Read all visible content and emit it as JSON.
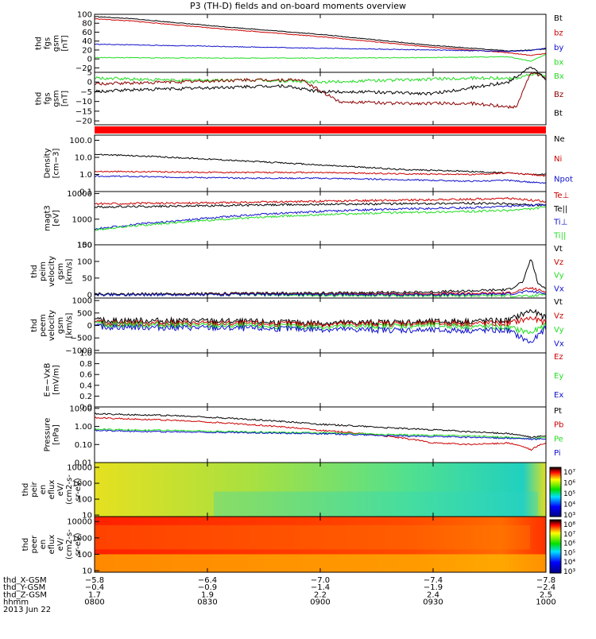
{
  "title": "P3 (TH-D) fields and on-board moments overview",
  "colors": {
    "black": "#000000",
    "red": "#cc0000",
    "darkred": "#8b0000",
    "green": "#22dd22",
    "blue": "#1010cc"
  },
  "chart_data": {
    "type": "line",
    "time": {
      "range": [
        0,
        120
      ],
      "unit": "min after 0800",
      "ticks": [
        0,
        30,
        60,
        90,
        120
      ],
      "tick_labels": [
        "0800",
        "0830",
        "0900",
        "0930",
        "1000"
      ]
    },
    "panels": [
      {
        "id": "bgsm",
        "ylabel": [
          "thd",
          "fgs",
          "gsm",
          "[nT]"
        ],
        "scale": "linear",
        "ylim": [
          -30,
          100
        ],
        "yticks": [
          100,
          80,
          60,
          40,
          20,
          0,
          -20
        ],
        "ytick_labels": [
          "100",
          "80",
          "60",
          "40",
          "20",
          "0",
          "−20"
        ],
        "series": [
          {
            "name": "Bt",
            "color": "black",
            "t": [
              0,
              10,
              30,
              60,
              90,
              110,
              116,
              120
            ],
            "v": [
              95,
              90,
              75,
              55,
              30,
              18,
              20,
              22
            ]
          },
          {
            "name": "bz",
            "color": "red",
            "t": [
              0,
              10,
              30,
              60,
              90,
              110,
              116,
              120
            ],
            "v": [
              90,
              85,
              70,
              50,
              26,
              14,
              8,
              12
            ]
          },
          {
            "name": "by",
            "color": "blue",
            "t": [
              0,
              20,
              60,
              90,
              110,
              116,
              120
            ],
            "v": [
              33,
              30,
              24,
              20,
              17,
              19,
              24
            ]
          },
          {
            "name": "bx",
            "color": "green",
            "t": [
              0,
              30,
              60,
              90,
              110,
              116,
              120
            ],
            "v": [
              3,
              2,
              2,
              3,
              5,
              -5,
              10
            ]
          }
        ]
      },
      {
        "id": "bgsmz",
        "ylabel": [
          "thd",
          "fgs",
          "gsm",
          "[nT]"
        ],
        "scale": "linear",
        "ylim": [
          -22,
          5
        ],
        "yticks": [
          5,
          0,
          -5,
          -10,
          -15,
          -20
        ],
        "ytick_labels": [
          "5",
          "0",
          "−5",
          "−10",
          "−15",
          "−20"
        ],
        "series": [
          {
            "name": "Bx",
            "color": "green",
            "t": [
              0,
              20,
              40,
              60,
              80,
              100,
              112,
              116,
              120
            ],
            "v": [
              2,
              1,
              1,
              0,
              1,
              2,
              2,
              4,
              3
            ]
          },
          {
            "name": "Bz",
            "color": "darkred",
            "t": [
              0,
              20,
              40,
              55,
              65,
              80,
              100,
              112,
              116,
              120
            ],
            "v": [
              -1,
              0,
              1,
              1,
              -10,
              -11,
              -11,
              -13,
              5,
              2
            ]
          },
          {
            "name": "Bt",
            "color": "black",
            "t": [
              0,
              10,
              30,
              50,
              60,
              70,
              90,
              100,
              110,
              116,
              120
            ],
            "v": [
              -5,
              -4,
              -3,
              -2,
              -5,
              -5,
              -6,
              -3,
              0,
              8,
              1
            ]
          }
        ]
      },
      {
        "id": "flag",
        "ylabel": [],
        "scale": "flag",
        "ylim": [
          0,
          1
        ],
        "yticks": [],
        "ytick_labels": [],
        "series": []
      },
      {
        "id": "density",
        "ylabel": [
          "Density",
          "[cm−3]"
        ],
        "scale": "log",
        "ylim": [
          0.1,
          200
        ],
        "yticks": [
          100,
          10,
          1,
          0.1
        ],
        "ytick_labels": [
          "100.0",
          "10.0",
          "1.0",
          "0.1"
        ],
        "series": [
          {
            "name": "Ne",
            "color": "black",
            "t": [
              0,
              20,
              40,
              60,
              80,
              100,
              110,
              116,
              120
            ],
            "v": [
              15,
              10,
              6,
              3.5,
              2,
              1.5,
              1.2,
              1,
              1
            ]
          },
          {
            "name": "Ni",
            "color": "red",
            "t": [
              0,
              20,
              40,
              60,
              80,
              100,
              110,
              116,
              120
            ],
            "v": [
              1.5,
              1.4,
              1.3,
              1.3,
              1.1,
              1,
              1.2,
              1,
              0.8
            ]
          },
          {
            "name": "Npot",
            "color": "blue",
            "t": [
              0,
              20,
              40,
              60,
              80,
              100,
              110,
              116,
              120
            ],
            "v": [
              0.8,
              0.7,
              0.6,
              0.6,
              0.5,
              0.4,
              0.45,
              0.35,
              0.3
            ]
          }
        ]
      },
      {
        "id": "temp",
        "ylabel": [
          "magt3",
          "[eV]"
        ],
        "scale": "log",
        "ylim": [
          100,
          12000
        ],
        "yticks": [
          10000,
          1000,
          100
        ],
        "ytick_labels": [
          "10000",
          "1000",
          "100"
        ],
        "series": [
          {
            "name": "Te⊥",
            "color": "red",
            "t": [
              0,
              20,
              40,
              60,
              80,
              100,
              110,
              116,
              120
            ],
            "v": [
              4000,
              4200,
              4500,
              5000,
              5500,
              6000,
              6500,
              5500,
              5000
            ]
          },
          {
            "name": "Te||",
            "color": "black",
            "t": [
              0,
              20,
              40,
              60,
              80,
              100,
              110,
              116,
              120
            ],
            "v": [
              3000,
              3200,
              3500,
              3800,
              4000,
              4200,
              4000,
              3500,
              3500
            ]
          },
          {
            "name": "Ti⊥",
            "color": "blue",
            "t": [
              0,
              20,
              40,
              60,
              80,
              100,
              110,
              116,
              120
            ],
            "v": [
              400,
              800,
              1400,
              2000,
              2500,
              2800,
              3200,
              3500,
              3800
            ]
          },
          {
            "name": "Ti||",
            "color": "green",
            "t": [
              0,
              20,
              40,
              60,
              80,
              100,
              110,
              116,
              120
            ],
            "v": [
              380,
              700,
              1100,
              1500,
              1800,
              2000,
              2200,
              2500,
              3000
            ]
          }
        ]
      },
      {
        "id": "vel_perm",
        "ylabel": [
          "thd",
          "peim",
          "velocity",
          "gsm",
          "[km/s]"
        ],
        "scale": "linear",
        "ylim": [
          -10,
          150
        ],
        "yticks": [
          150,
          100,
          50,
          0
        ],
        "ytick_labels": [
          "150",
          "100",
          "50",
          "0"
        ],
        "series": [
          {
            "name": "Vt",
            "color": "black",
            "t": [
              0,
              30,
              60,
              90,
              110,
              114,
              116,
              118,
              120
            ],
            "v": [
              2,
              3,
              5,
              8,
              15,
              40,
              110,
              30,
              20
            ]
          },
          {
            "name": "Vz",
            "color": "red",
            "t": [
              0,
              30,
              60,
              90,
              110,
              116,
              120
            ],
            "v": [
              0,
              1,
              2,
              3,
              5,
              20,
              8
            ]
          },
          {
            "name": "Vy",
            "color": "green",
            "t": [
              0,
              30,
              60,
              90,
              110,
              116,
              120
            ],
            "v": [
              0,
              0,
              -2,
              -3,
              -3,
              -5,
              2
            ]
          },
          {
            "name": "Vx",
            "color": "blue",
            "t": [
              0,
              30,
              60,
              90,
              110,
              116,
              120
            ],
            "v": [
              0,
              0,
              1,
              0,
              2,
              10,
              3
            ]
          }
        ]
      },
      {
        "id": "vel_perf",
        "ylabel": [
          "thd",
          "peem",
          "velocity",
          "gsm",
          "[km/s]"
        ],
        "scale": "linear",
        "ylim": [
          -1100,
          1100
        ],
        "yticks": [
          1000,
          500,
          0,
          -500,
          -1000
        ],
        "ytick_labels": [
          "1000",
          "500",
          "0",
          "−500",
          "−1000"
        ],
        "series": [
          {
            "name": "Vt",
            "color": "black",
            "t": [
              0,
              30,
              60,
              90,
              110,
              116,
              120
            ],
            "v": [
              200,
              180,
              100,
              150,
              200,
              600,
              300
            ]
          },
          {
            "name": "Vz",
            "color": "red",
            "t": [
              0,
              30,
              60,
              90,
              110,
              116,
              120
            ],
            "v": [
              100,
              80,
              50,
              80,
              80,
              300,
              100
            ]
          },
          {
            "name": "Vy",
            "color": "green",
            "t": [
              0,
              30,
              60,
              90,
              110,
              116,
              120
            ],
            "v": [
              50,
              0,
              -50,
              0,
              -80,
              -300,
              0
            ]
          },
          {
            "name": "Vx",
            "color": "blue",
            "t": [
              0,
              30,
              60,
              90,
              110,
              116,
              120
            ],
            "v": [
              -50,
              -100,
              -150,
              -200,
              -200,
              -700,
              -100
            ]
          }
        ]
      },
      {
        "id": "efield",
        "ylabel": [
          "E=−VxB",
          "[mV/m]"
        ],
        "scale": "linear",
        "ylim": [
          0,
          1
        ],
        "yticks": [
          1.0,
          0.8,
          0.6,
          0.4,
          0.2,
          0.0
        ],
        "ytick_labels": [
          "1.0",
          "0.8",
          "0.6",
          "0.4",
          "0.2",
          "0.0"
        ],
        "series": [],
        "legend": [
          {
            "name": "Ez",
            "color": "red"
          },
          {
            "name": "Ey",
            "color": "green"
          },
          {
            "name": "Ex",
            "color": "blue"
          }
        ]
      },
      {
        "id": "pressure",
        "ylabel": [
          "Pressure",
          "[nPa]"
        ],
        "scale": "log",
        "ylim": [
          0.01,
          12
        ],
        "yticks": [
          10,
          1,
          0.1,
          0.01
        ],
        "ytick_labels": [
          "10.00",
          "1.00",
          "0.10",
          "0.01"
        ],
        "series": [
          {
            "name": "Pt",
            "color": "black",
            "t": [
              0,
              20,
              40,
              60,
              80,
              100,
              110,
              116,
              120
            ],
            "v": [
              5,
              4,
              2.5,
              1.3,
              0.8,
              0.5,
              0.4,
              0.25,
              0.3
            ]
          },
          {
            "name": "Pb",
            "color": "red",
            "t": [
              0,
              20,
              40,
              60,
              80,
              90,
              100,
              110,
              116,
              120
            ],
            "v": [
              3,
              2.2,
              1.3,
              0.6,
              0.25,
              0.12,
              0.1,
              0.12,
              0.05,
              0.12
            ]
          },
          {
            "name": "Pe",
            "color": "green",
            "t": [
              0,
              20,
              40,
              60,
              80,
              100,
              110,
              116,
              120
            ],
            "v": [
              0.7,
              0.6,
              0.5,
              0.45,
              0.35,
              0.3,
              0.25,
              0.2,
              0.25
            ]
          },
          {
            "name": "Pi",
            "color": "blue",
            "t": [
              0,
              20,
              40,
              60,
              80,
              100,
              110,
              116,
              120
            ],
            "v": [
              0.6,
              0.5,
              0.45,
              0.4,
              0.3,
              0.25,
              0.22,
              0.2,
              0.2
            ]
          }
        ]
      },
      {
        "id": "ion_spec",
        "ylabel": [
          "thd",
          "peir",
          "en",
          "eflux",
          "eV/",
          "(cm2-s-",
          "sr-eV)"
        ],
        "scale": "spectrogram",
        "ylim": [
          8,
          20000
        ],
        "yticks": [
          10000,
          1000,
          100,
          10
        ],
        "ytick_labels": [
          "10000",
          "1000",
          "100",
          "10"
        ],
        "colorbar": {
          "ticks": [
            "10⁷",
            "10⁶",
            "10⁵",
            "10⁴",
            "10³"
          ]
        }
      },
      {
        "id": "elec_spec",
        "ylabel": [
          "thd",
          "peer",
          "en",
          "eflux",
          "eV/",
          "(cm2-s-",
          "sr-eV)"
        ],
        "scale": "spectrogram",
        "ylim": [
          8,
          20000
        ],
        "yticks": [
          10000,
          1000,
          100,
          10
        ],
        "ytick_labels": [
          "10000",
          "1000",
          "100",
          "10"
        ],
        "colorbar": {
          "ticks": [
            "10⁸",
            "10⁷",
            "10⁶",
            "10⁵",
            "10⁴",
            "10³"
          ]
        }
      }
    ],
    "orbit": {
      "labels": [
        "thd_X-GSM",
        "thd_Y-GSM",
        "thd_Z-GSM",
        "hhmm",
        "2013 Jun 22"
      ],
      "rows": [
        [
          "−5.8",
          "−6.4",
          "−7.0",
          "−7.4",
          "−7.8"
        ],
        [
          "−0.4",
          "−0.9",
          "−1.4",
          "−1.9",
          "−2.4"
        ],
        [
          "1.7",
          "1.9",
          "2.2",
          "2.4",
          "2.5"
        ],
        [
          "0800",
          "0830",
          "0900",
          "0930",
          "1000"
        ]
      ]
    }
  }
}
